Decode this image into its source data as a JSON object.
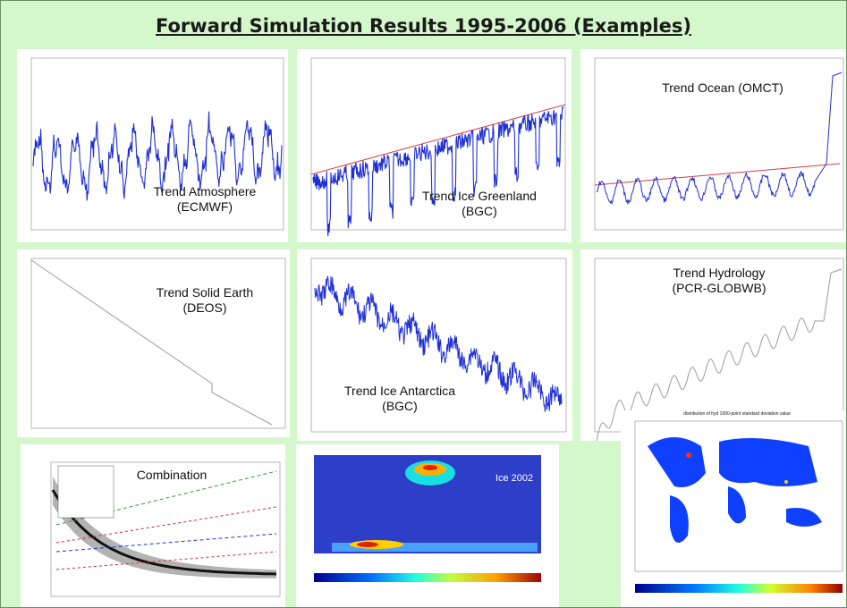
{
  "title": "Forward Simulation Results 1995-2006 (Examples)",
  "panels": [
    {
      "label1": "Trend Atmosphere",
      "label2": "(ECMWF)"
    },
    {
      "label1": "Trend Ice Greenland",
      "label2": "(BGC)"
    },
    {
      "label1": "Trend Ocean (OMCT)",
      "label2": ""
    },
    {
      "label1": "Trend Solid Earth",
      "label2": "(DEOS)"
    },
    {
      "label1": "Trend Ice Antarctica",
      "label2": "(BGC)"
    },
    {
      "label1": "Trend Hydrology",
      "label2": "(PCR-GLOBWB)"
    },
    {
      "label1": "Combination",
      "label2": ""
    },
    {
      "label1": "Ice 2002",
      "label2": ""
    },
    {
      "label1": "",
      "label2": ""
    }
  ],
  "colors": {
    "background": "#d4f7cb",
    "series": "#1f2fd6",
    "trend": "#d04040",
    "line": "#9a9aa8"
  },
  "chart_data": [
    {
      "type": "line",
      "series": [
        {
          "values": "seasonal-sawtooth"
        }
      ]
    },
    {
      "type": "line",
      "series": [
        {
          "values": "seasonal-rising"
        }
      ]
    },
    {
      "type": "line",
      "series": [
        {
          "values": "seasonal-wavy"
        }
      ]
    },
    {
      "type": "line",
      "series": [
        {
          "values": "linear-decline-with-step"
        }
      ]
    },
    {
      "type": "line",
      "series": [
        {
          "values": "noisy-decline"
        }
      ]
    },
    {
      "type": "line",
      "series": [
        {
          "values": "wavy-rise"
        }
      ]
    },
    {
      "type": "line",
      "series": [
        {
          "values": "decaying-curves"
        }
      ]
    },
    {
      "type": "heatmap"
    },
    {
      "type": "heatmap",
      "title": "distribution of hyd 1000-point standard deviation value"
    }
  ]
}
